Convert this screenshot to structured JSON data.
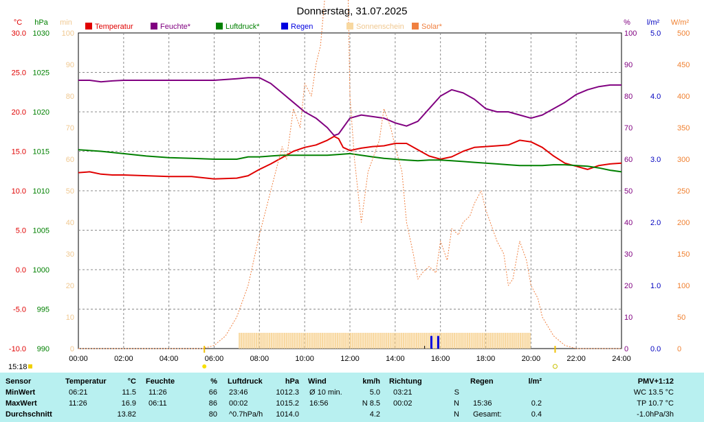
{
  "chart_data": {
    "type": "line",
    "title": "Donnerstag, 31.07.2025",
    "x_ticks": [
      "00:00",
      "02:00",
      "04:00",
      "06:00",
      "08:00",
      "10:00",
      "12:00",
      "14:00",
      "16:00",
      "18:00",
      "20:00",
      "22:00",
      "24:00"
    ],
    "left_axes": [
      {
        "unit": "°C",
        "color": "#e00000",
        "ticks": [
          "30.0",
          "25.0",
          "20.0",
          "15.0",
          "10.0",
          "5.0",
          "0.0",
          "-5.0",
          "-10.0"
        ],
        "range": [
          -10,
          30
        ]
      },
      {
        "unit": "hPa",
        "color": "#008000",
        "ticks": [
          "1030",
          "1025",
          "1020",
          "1015",
          "1010",
          "1005",
          "1000",
          "995",
          "990"
        ],
        "range": [
          990,
          1030
        ]
      },
      {
        "unit": "min",
        "color": "#f0c890",
        "ticks": [
          "100",
          "90",
          "80",
          "70",
          "60",
          "50",
          "40",
          "30",
          "20",
          "10",
          "0"
        ],
        "range": [
          0,
          100
        ]
      }
    ],
    "right_axes": [
      {
        "unit": "%",
        "color": "#800080",
        "ticks": [
          "100",
          "90",
          "80",
          "70",
          "60",
          "50",
          "40",
          "30",
          "20",
          "10",
          "0"
        ],
        "range": [
          0,
          100
        ]
      },
      {
        "unit": "l/m²",
        "color": "#0000c0",
        "ticks": [
          "5.0",
          "4.0",
          "3.0",
          "2.0",
          "1.0",
          "0.0"
        ],
        "range": [
          0,
          5
        ]
      },
      {
        "unit": "W/m²",
        "color": "#f08030",
        "ticks": [
          "500",
          "450",
          "400",
          "350",
          "300",
          "250",
          "200",
          "150",
          "100",
          "50",
          "0"
        ],
        "range": [
          0,
          500
        ]
      }
    ],
    "legend": [
      {
        "label": "Temperatur",
        "color": "#e00000"
      },
      {
        "label": "Feuchte*",
        "color": "#800080"
      },
      {
        "label": "Luftdruck*",
        "color": "#008000"
      },
      {
        "label": "Regen",
        "color": "#0000e0"
      },
      {
        "label": "Sonnenschein",
        "color": "#f8d8a0"
      },
      {
        "label": "Solar*",
        "color": "#f08040"
      }
    ],
    "markers": {
      "sunrise": "05:34",
      "sunset": "21:04",
      "current_time": "15:18"
    },
    "series": [
      {
        "name": "Temperatur",
        "color": "#e00000",
        "axis": "°C",
        "x": [
          0,
          0.5,
          1,
          1.5,
          2,
          3,
          4,
          5,
          6,
          7,
          7.5,
          8,
          8.5,
          9,
          9.5,
          10,
          10.5,
          11,
          11.3,
          11.5,
          11.7,
          12,
          12.5,
          13,
          13.5,
          14,
          14.5,
          15,
          15.5,
          16,
          16.5,
          17,
          17.5,
          18,
          18.5,
          19,
          19.5,
          20,
          20.5,
          21,
          21.5,
          22,
          22.5,
          23,
          23.5,
          24
        ],
        "y": [
          12.3,
          12.4,
          12.1,
          12.0,
          12.0,
          11.9,
          11.8,
          11.8,
          11.5,
          11.6,
          11.9,
          12.7,
          13.4,
          14.2,
          15.0,
          15.5,
          15.8,
          16.4,
          16.9,
          16.6,
          15.5,
          15.1,
          15.4,
          15.6,
          15.7,
          16.0,
          16.0,
          15.2,
          14.4,
          14.0,
          14.3,
          15.0,
          15.5,
          15.6,
          15.7,
          15.8,
          16.4,
          16.2,
          15.5,
          14.4,
          13.5,
          13.1,
          12.7,
          13.2,
          13.4,
          13.5
        ]
      },
      {
        "name": "Feuchte*",
        "color": "#800080",
        "axis": "%",
        "x": [
          0,
          0.5,
          1,
          1.5,
          2,
          3,
          4,
          5,
          6,
          7,
          7.5,
          8,
          8.5,
          9,
          9.5,
          10,
          10.5,
          11,
          11.3,
          11.5,
          11.7,
          12,
          12.5,
          13,
          13.5,
          14,
          14.5,
          15,
          15.5,
          16,
          16.5,
          17,
          17.5,
          18,
          18.5,
          19,
          19.5,
          20,
          20.5,
          21,
          21.5,
          22,
          22.5,
          23,
          23.5,
          24
        ],
        "y": [
          85,
          85,
          84.5,
          84.8,
          85,
          85,
          85,
          85,
          85,
          85.5,
          85.8,
          85.8,
          84,
          81,
          78,
          75,
          73,
          70,
          67.5,
          68,
          70,
          73,
          74,
          73.5,
          73,
          71.5,
          70.5,
          72,
          76,
          80,
          82,
          81,
          79,
          76,
          75,
          75,
          74,
          73,
          74,
          76,
          78,
          80.5,
          82,
          83,
          83.5,
          83.5
        ]
      },
      {
        "name": "Luftdruck*",
        "color": "#008000",
        "axis": "hPa",
        "x": [
          0,
          1,
          2,
          3,
          4,
          5,
          6,
          7,
          7.5,
          8,
          8.5,
          9,
          9.5,
          10,
          10.5,
          11,
          11.5,
          12,
          12.5,
          13,
          13.5,
          14,
          14.5,
          15,
          15.5,
          16,
          16.5,
          17,
          17.5,
          18,
          18.5,
          19,
          19.5,
          20,
          20.5,
          21,
          21.5,
          22,
          22.5,
          23,
          23.5,
          24
        ],
        "y": [
          1015.2,
          1015.0,
          1014.7,
          1014.4,
          1014.2,
          1014.1,
          1014.0,
          1014.0,
          1014.3,
          1014.3,
          1014.4,
          1014.5,
          1014.5,
          1014.5,
          1014.5,
          1014.5,
          1014.6,
          1014.7,
          1014.5,
          1014.3,
          1014.1,
          1014.0,
          1013.9,
          1013.8,
          1013.9,
          1013.9,
          1013.8,
          1013.7,
          1013.6,
          1013.5,
          1013.4,
          1013.3,
          1013.2,
          1013.2,
          1013.2,
          1013.3,
          1013.3,
          1013.2,
          1013.1,
          1012.9,
          1012.6,
          1012.4
        ]
      },
      {
        "name": "Solar*",
        "color": "#f08040",
        "axis": "W/m²",
        "x": [
          0,
          5.5,
          6,
          6.5,
          7,
          7.5,
          8,
          8.5,
          9,
          9.2,
          9.5,
          9.8,
          10,
          10.3,
          10.5,
          10.7,
          11,
          11.2,
          11.4,
          11.5,
          11.7,
          11.9,
          12,
          12.2,
          12.5,
          12.8,
          13,
          13.3,
          13.5,
          13.8,
          14,
          14.3,
          14.5,
          14.8,
          15,
          15.2,
          15.5,
          15.8,
          16,
          16.3,
          16.5,
          16.8,
          17,
          17.3,
          17.5,
          17.8,
          18,
          18.3,
          18.5,
          18.8,
          19,
          19.2,
          19.5,
          19.8,
          20,
          20.3,
          20.5,
          21,
          21.5,
          22,
          24
        ],
        "y": [
          0,
          0,
          5,
          20,
          50,
          100,
          180,
          250,
          320,
          300,
          380,
          350,
          420,
          400,
          450,
          480,
          600,
          720,
          800,
          1000,
          800,
          600,
          400,
          300,
          200,
          280,
          300,
          330,
          380,
          350,
          320,
          280,
          200,
          150,
          110,
          120,
          130,
          120,
          170,
          140,
          190,
          180,
          200,
          210,
          230,
          250,
          220,
          190,
          170,
          150,
          100,
          110,
          170,
          140,
          100,
          80,
          50,
          20,
          5,
          0,
          0
        ]
      }
    ],
    "sunshine_minutes": {
      "name": "Sonnenschein",
      "color": "#f8d8a0",
      "axis": "min",
      "from": "07:05",
      "to": "19:55",
      "value": 5
    },
    "rain": {
      "name": "Regen",
      "color": "#0000e0",
      "axis": "l/m²",
      "times": [
        "15:36",
        "15:54"
      ],
      "values": [
        0.2,
        0.2
      ]
    }
  },
  "stats": {
    "current_time": "15:18",
    "headers": {
      "sensor": "Sensor",
      "temperature": "Temperatur",
      "temperature_unit": "°C",
      "humidity": "Feuchte",
      "humidity_unit": "%",
      "pressure": "Luftdruck",
      "pressure_unit": "hPa",
      "wind": "Wind",
      "wind_unit": "km/h",
      "direction": "Richtung",
      "rain": "Regen",
      "rain_unit": "l/m²",
      "pmv": "PMV+1:12"
    },
    "rows": [
      {
        "label": "MinWert",
        "temp_time": "06:21",
        "temp": "11.5",
        "hum_time": "11:26",
        "hum": "66",
        "press_time": "23:46",
        "press": "1012.3",
        "wind_label": "Ø 10 min.",
        "wind": "5.0",
        "dir_time": "03:21",
        "dir": "S",
        "rain_time": "",
        "rain": "",
        "extra": "WC 13.5 °C"
      },
      {
        "label": "MaxWert",
        "temp_time": "11:26",
        "temp": "16.9",
        "hum_time": "06:11",
        "hum": "86",
        "press_time": "00:02",
        "press": "1015.2",
        "wind_label": "16:56",
        "wind": "N 8.5",
        "dir_time": "00:02",
        "dir": "N",
        "rain_time": "15:36",
        "rain": "0.2",
        "extra": "TP 10.7 °C"
      },
      {
        "label": "Durchschnitt",
        "temp_time": "",
        "temp": "13.82",
        "hum_time": "",
        "hum": "80",
        "press_time": "^0.7hPa/h",
        "press": "1014.0",
        "wind_label": "",
        "wind": "4.2",
        "dir_time": "",
        "dir": "N",
        "rain_time": "Gesamt:",
        "rain": "0.4",
        "extra": "-1.0hPa/3h"
      }
    ]
  }
}
